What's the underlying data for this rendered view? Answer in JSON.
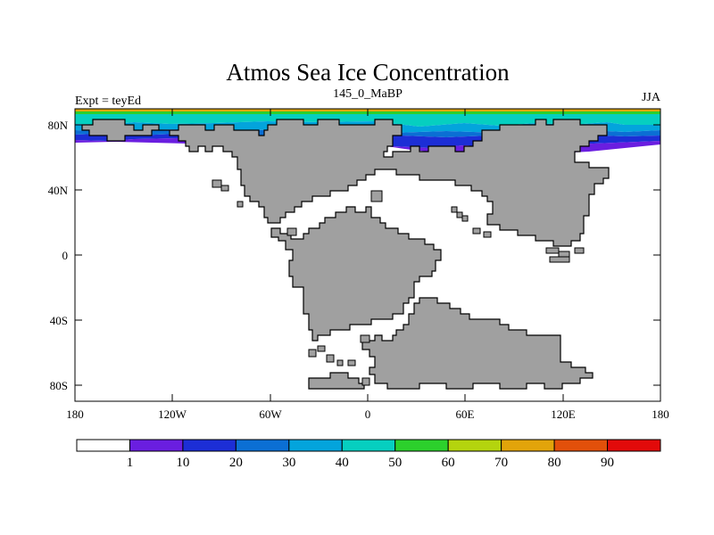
{
  "title": "Atmos Sea Ice Concentration",
  "left_label": "Expt = teyEd",
  "center_label": "145_0_MaBP",
  "right_label": "JJA",
  "x_ticks": [
    "180",
    "120W",
    "60W",
    "0",
    "60E",
    "120E",
    "180"
  ],
  "y_ticks": [
    "80N",
    "40N",
    "0",
    "40S",
    "80S"
  ],
  "colorbar": {
    "labels": [
      "1",
      "10",
      "20",
      "30",
      "40",
      "50",
      "60",
      "70",
      "80",
      "90"
    ],
    "colors": [
      "#ffffff",
      "#6a1ee0",
      "#1c2ed6",
      "#0b6fd4",
      "#03a4dc",
      "#06cfc0",
      "#2cd02c",
      "#b4d40e",
      "#e2a40a",
      "#e2500a",
      "#e20a0a"
    ]
  },
  "map_colors": {
    "land": "#a0a0a0",
    "ocean": "#ffffff",
    "coast": "#000000"
  }
}
